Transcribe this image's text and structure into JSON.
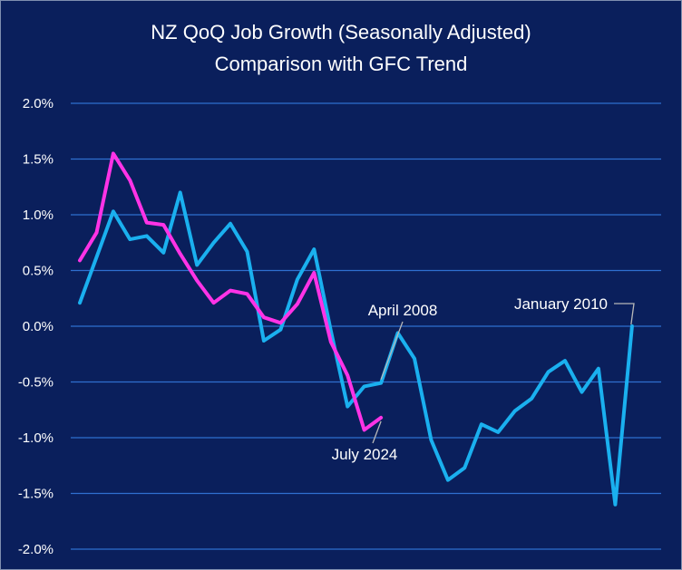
{
  "chart_data": {
    "type": "line",
    "title": "NZ QoQ Job Growth (Seasonally Adjusted)",
    "subtitle": "Comparison with GFC Trend",
    "ylim": [
      -2.0,
      2.0
    ],
    "y_ticks": [
      2.0,
      1.5,
      1.0,
      0.5,
      0.0,
      -0.5,
      -1.0,
      -1.5,
      -2.0
    ],
    "y_tick_labels": [
      "2.0%",
      "1.5%",
      "1.0%",
      "0.5%",
      "0.0%",
      "-0.5%",
      "-1.0%",
      "-1.5%",
      "-2.0%"
    ],
    "grid": true,
    "series": [
      {
        "color": "#1ab0ef",
        "values": [
          0.21,
          0.62,
          1.03,
          0.78,
          0.81,
          0.66,
          1.2,
          0.55,
          0.75,
          0.92,
          0.67,
          -0.13,
          -0.03,
          0.42,
          0.69,
          -0.04,
          -0.72,
          -0.54,
          -0.51,
          -0.06,
          -0.29,
          -1.02,
          -1.38,
          -1.27,
          -0.88,
          -0.95,
          -0.76,
          -0.65,
          -0.41,
          -0.31,
          -0.59,
          -0.38,
          -1.6,
          0.0
        ]
      },
      {
        "color": "#ff33e6",
        "values": [
          0.59,
          0.84,
          1.55,
          1.31,
          0.93,
          0.91,
          0.65,
          0.41,
          0.21,
          0.32,
          0.29,
          0.08,
          0.03,
          0.2,
          0.48,
          -0.14,
          -0.44,
          -0.93,
          -0.82
        ]
      }
    ],
    "annotations": [
      {
        "text": "April 2008",
        "series": 0,
        "index": 18
      },
      {
        "text": "July 2024",
        "series": 1,
        "index": 18
      },
      {
        "text": "January 2010",
        "series": 0,
        "index": 33
      }
    ]
  }
}
